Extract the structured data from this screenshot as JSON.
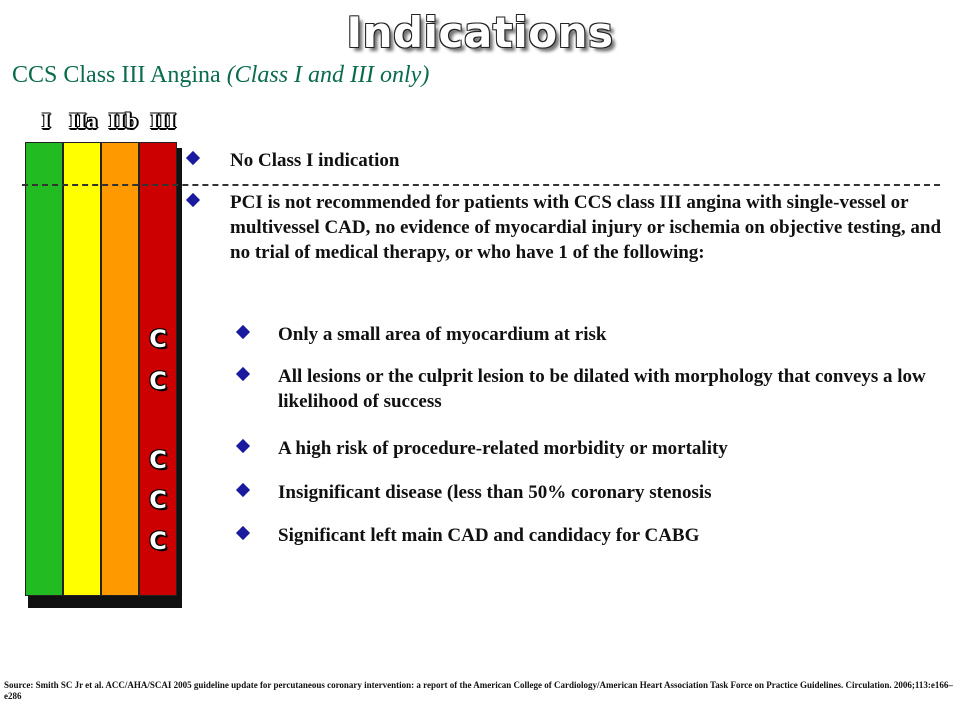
{
  "title": "Indications",
  "subtitle": {
    "main": "CCS Class III Angina ",
    "italic": "(Class I and III only)"
  },
  "class_labels": [
    "I",
    "IIa",
    "IIb",
    "III"
  ],
  "colors": {
    "class_I": "#22bb22",
    "class_IIa": "#ffff00",
    "class_IIb": "#ff9900",
    "class_III": "#cc0000",
    "subtitle": "#0a6b4e",
    "bullet": "#1a1a9e"
  },
  "c_marks": [
    "C",
    "C",
    "C",
    "C",
    "C"
  ],
  "bullets": {
    "b1": "No Class I indication",
    "b2": "PCI is not recommended for patients with CCS class III angina with single-vessel or multivessel CAD, no evidence of myocardial injury or ischemia on objective testing, and no trial of medical therapy, or who have 1 of the following:",
    "sub": [
      "Only a small area of myocardium at risk",
      "All lesions or the culprit lesion to be dilated with morphology that conveys a low likelihood of success",
      "A high risk of procedure-related morbidity or mortality",
      "Insignificant disease (less than 50% coronary stenosis",
      "Significant left main CAD and candidacy for CABG"
    ]
  },
  "source": "Source: Smith SC Jr et al. ACC/AHA/SCAI 2005 guideline update for percutaneous coronary intervention: a report of the American College of Cardiology/American Heart Association Task Force on Practice Guidelines. Circulation. 2006;113:e166–e286"
}
